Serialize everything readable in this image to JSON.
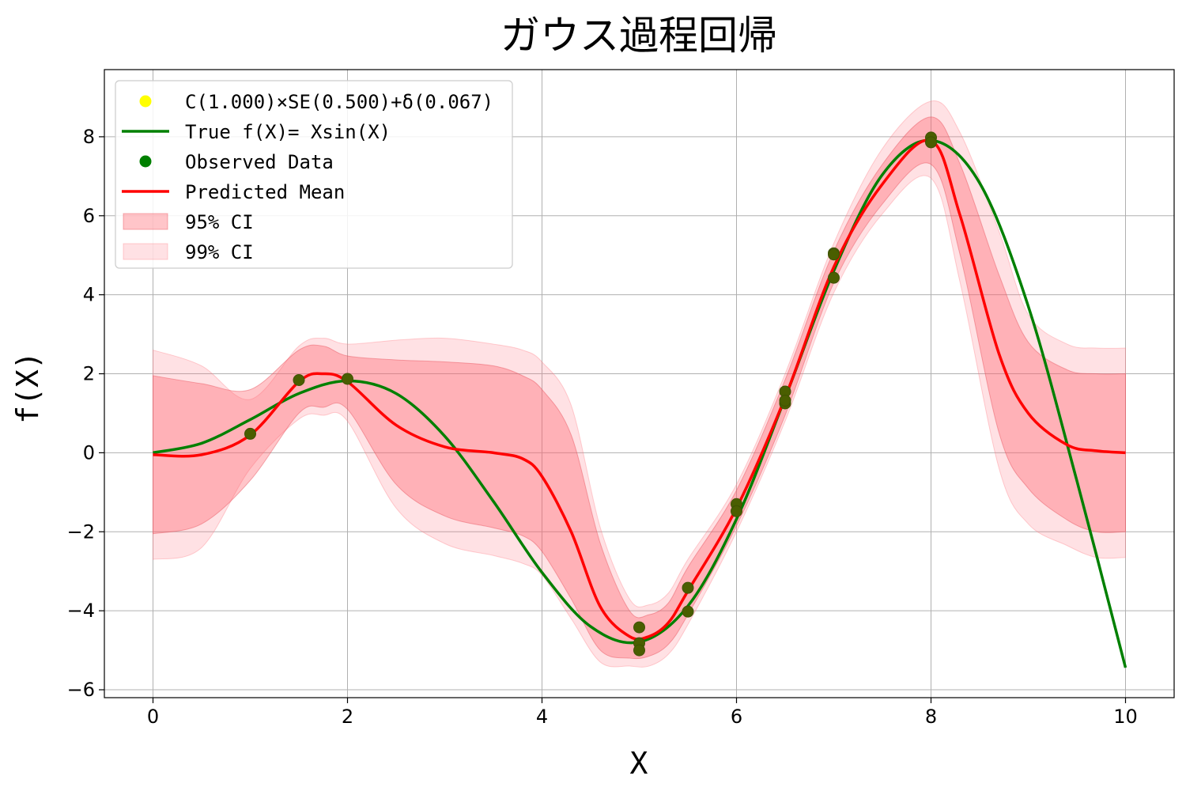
{
  "chart_data": {
    "type": "line",
    "title": "ガウス過程回帰",
    "xlabel": "X",
    "ylabel": "f(X)",
    "xlim": [
      -0.5,
      10.5
    ],
    "ylim": [
      -6.2,
      9.7
    ],
    "xticks": [
      0,
      2,
      4,
      6,
      8,
      10
    ],
    "yticks": [
      -6,
      -4,
      -2,
      0,
      2,
      4,
      6,
      8
    ],
    "xtick_labels": [
      "0",
      "2",
      "4",
      "6",
      "8",
      "10"
    ],
    "ytick_labels": [
      "−6",
      "−4",
      "−2",
      "0",
      "2",
      "4",
      "6",
      "8"
    ],
    "grid": true,
    "legend_position": "top-left",
    "legend": [
      {
        "label": "C(1.000)×SE(0.500)+δ(0.067)",
        "kind": "marker",
        "color": "#ffff00"
      },
      {
        "label": "True f(X)= Xsin(X)",
        "kind": "line",
        "color": "#008000"
      },
      {
        "label": "Observed Data",
        "kind": "marker",
        "color": "#008000"
      },
      {
        "label": "Predicted Mean",
        "kind": "line",
        "color": "#ff0000"
      },
      {
        "label": "95% CI",
        "kind": "patch",
        "color": "#ff9999"
      },
      {
        "label": "99% CI",
        "kind": "patch",
        "color": "#ffd6d6"
      }
    ],
    "observed": {
      "x": [
        1.0,
        1.5,
        2.0,
        5.0,
        5.0,
        5.0,
        5.5,
        5.5,
        6.0,
        6.0,
        6.5,
        6.5,
        6.5,
        7.0,
        7.0,
        7.0,
        8.0,
        8.0
      ],
      "y": [
        0.48,
        1.84,
        1.87,
        -4.42,
        -4.82,
        -5.0,
        -3.42,
        -4.02,
        -1.3,
        -1.48,
        1.55,
        1.25,
        1.32,
        5.05,
        5.02,
        4.43,
        7.98,
        7.86
      ]
    },
    "true_function": {
      "x": [
        0,
        0.5,
        1,
        1.5,
        2,
        2.5,
        3,
        3.5,
        4,
        4.5,
        5,
        5.5,
        6,
        6.5,
        7,
        7.5,
        8,
        8.5,
        9,
        9.5,
        10
      ],
      "y": [
        0,
        0.24,
        0.84,
        1.5,
        1.82,
        1.5,
        0.42,
        -1.23,
        -3.03,
        -4.4,
        -4.79,
        -3.88,
        -1.68,
        1.39,
        4.6,
        7.04,
        7.91,
        6.83,
        3.71,
        -0.71,
        -5.44
      ]
    },
    "predicted_mean": {
      "x": [
        0,
        0.5,
        1,
        1.5,
        1.75,
        2,
        2.5,
        3,
        3.5,
        3.8,
        4,
        4.3,
        4.6,
        4.9,
        5.1,
        5.3,
        5.5,
        6,
        6.5,
        7,
        7.5,
        8,
        8.3,
        8.7,
        9,
        9.4,
        9.7,
        10
      ],
      "y": [
        -0.05,
        -0.05,
        0.45,
        1.8,
        2.0,
        1.8,
        0.7,
        0.15,
        0.0,
        -0.15,
        -0.6,
        -2.0,
        -3.9,
        -4.65,
        -4.65,
        -4.3,
        -3.5,
        -1.4,
        1.4,
        4.7,
        6.8,
        7.9,
        6.0,
        2.5,
        1.0,
        0.2,
        0.05,
        0.0
      ]
    },
    "ci95": {
      "x": [
        0,
        0.5,
        1,
        1.5,
        1.75,
        2,
        2.5,
        3,
        3.5,
        3.8,
        4,
        4.3,
        4.6,
        4.9,
        5.1,
        5.3,
        5.5,
        6,
        6.5,
        7,
        7.5,
        8,
        8.3,
        8.7,
        9,
        9.4,
        9.7,
        10
      ],
      "upper": [
        1.95,
        1.75,
        1.6,
        2.6,
        2.7,
        2.45,
        2.35,
        2.3,
        2.2,
        1.95,
        1.6,
        0.45,
        -2.3,
        -4.0,
        -4.1,
        -3.8,
        -2.9,
        -0.95,
        1.85,
        5.1,
        7.3,
        8.5,
        7.3,
        4.5,
        2.8,
        2.1,
        2.0,
        2.0
      ],
      "lower": [
        -2.05,
        -1.8,
        -0.7,
        1.0,
        1.15,
        1.1,
        -0.8,
        -1.6,
        -1.9,
        -2.1,
        -2.5,
        -3.7,
        -5.0,
        -5.2,
        -5.15,
        -4.85,
        -4.1,
        -1.85,
        0.95,
        4.3,
        6.3,
        7.3,
        5.0,
        0.5,
        -0.9,
        -1.7,
        -2.0,
        -2.0
      ]
    },
    "ci99": {
      "x": [
        0,
        0.5,
        1,
        1.5,
        1.75,
        2,
        2.5,
        3,
        3.5,
        3.8,
        4,
        4.3,
        4.6,
        4.9,
        5.1,
        5.3,
        5.5,
        6,
        6.5,
        7,
        7.5,
        8,
        8.3,
        8.7,
        9,
        9.4,
        9.7,
        10
      ],
      "upper": [
        2.6,
        2.2,
        1.35,
        2.7,
        2.9,
        2.75,
        2.85,
        2.9,
        2.75,
        2.6,
        2.3,
        1.2,
        -1.9,
        -3.7,
        -3.85,
        -3.55,
        -2.7,
        -0.8,
        2.0,
        5.3,
        7.7,
        8.9,
        8.1,
        5.6,
        3.5,
        2.75,
        2.65,
        2.65
      ],
      "lower": [
        -2.7,
        -2.4,
        -0.4,
        0.85,
        0.95,
        0.8,
        -1.4,
        -2.3,
        -2.6,
        -2.8,
        -3.1,
        -4.2,
        -5.3,
        -5.4,
        -5.4,
        -5.1,
        -4.35,
        -2.0,
        0.8,
        4.05,
        6.05,
        6.95,
        4.3,
        -0.4,
        -1.8,
        -2.35,
        -2.65,
        -2.65
      ]
    }
  }
}
